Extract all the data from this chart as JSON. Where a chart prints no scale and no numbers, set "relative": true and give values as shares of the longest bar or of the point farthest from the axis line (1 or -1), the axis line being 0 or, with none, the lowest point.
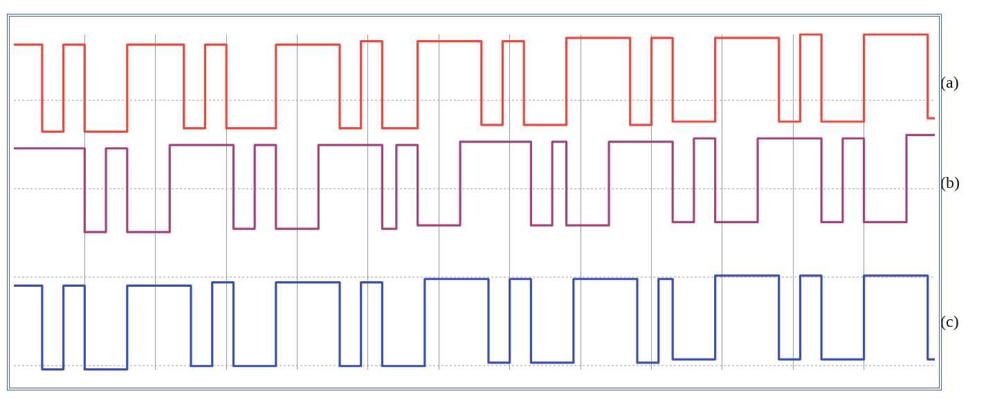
{
  "chart_data": {
    "type": "step",
    "relative": true,
    "grid": true,
    "legend": false,
    "marker": "none",
    "line_style": "solid",
    "categories": [
      null,
      null,
      null,
      null,
      null,
      null,
      null,
      null,
      null,
      null,
      null,
      null,
      null,
      null,
      null,
      null,
      null,
      null,
      null,
      null,
      null,
      null,
      null,
      null,
      null,
      null,
      null,
      null,
      null,
      null,
      null,
      null,
      null,
      null,
      null,
      null,
      null,
      null,
      null,
      null,
      null,
      null,
      null,
      null,
      null,
      null,
      null,
      null,
      null,
      null,
      null,
      null,
      null,
      null,
      null,
      null,
      null,
      null,
      null,
      null,
      null,
      null,
      null,
      null,
      null,
      null,
      null,
      null,
      null,
      null,
      null,
      null,
      null,
      null,
      null,
      null,
      null,
      null,
      null,
      null,
      null,
      null,
      null,
      null,
      null,
      null,
      null,
      null,
      null,
      null,
      null,
      null,
      null,
      null,
      null,
      null,
      null,
      null,
      null,
      null,
      null,
      null,
      null,
      null,
      null,
      null,
      null,
      null,
      null,
      null,
      null,
      null,
      null,
      null,
      null,
      null,
      null,
      null,
      null,
      null,
      null,
      null,
      null,
      null,
      null,
      null,
      null,
      null,
      null,
      null,
      null
    ],
    "series": [
      {
        "name": "(a)",
        "color": "#f0483c",
        "values": [
          0.97,
          0.97,
          0.97,
          0.97,
          0.71,
          0.71,
          0.71,
          0.97,
          0.97,
          0.97,
          0.71,
          0.71,
          0.71,
          0.71,
          0.71,
          0.71,
          0.97,
          0.97,
          0.97,
          0.97,
          0.97,
          0.97,
          0.97,
          0.97,
          0.72,
          0.72,
          0.72,
          0.97,
          0.97,
          0.97,
          0.72,
          0.72,
          0.72,
          0.72,
          0.72,
          0.72,
          0.72,
          0.97,
          0.97,
          0.97,
          0.97,
          0.97,
          0.97,
          0.97,
          0.97,
          0.97,
          0.72,
          0.72,
          0.72,
          0.98,
          0.98,
          0.98,
          0.72,
          0.72,
          0.72,
          0.72,
          0.72,
          0.98,
          0.98,
          0.98,
          0.98,
          0.98,
          0.98,
          0.98,
          0.98,
          0.98,
          0.73,
          0.73,
          0.73,
          0.98,
          0.98,
          0.98,
          0.73,
          0.73,
          0.73,
          0.73,
          0.73,
          0.73,
          0.99,
          0.99,
          0.99,
          0.99,
          0.99,
          0.99,
          0.99,
          0.99,
          0.99,
          0.73,
          0.73,
          0.73,
          0.99,
          0.99,
          0.99,
          0.74,
          0.74,
          0.74,
          0.74,
          0.74,
          0.74,
          0.99,
          0.99,
          0.99,
          0.99,
          0.99,
          0.99,
          0.99,
          0.99,
          0.99,
          0.74,
          0.74,
          0.74,
          1.0,
          1.0,
          1.0,
          0.74,
          0.74,
          0.74,
          0.74,
          0.74,
          0.74,
          1.0,
          1.0,
          1.0,
          1.0,
          1.0,
          1.0,
          1.0,
          1.0,
          1.0,
          0.75,
          0.75
        ]
      },
      {
        "name": "(b)",
        "color": "#a8427f",
        "values": [
          0.66,
          0.66,
          0.66,
          0.66,
          0.66,
          0.66,
          0.66,
          0.66,
          0.66,
          0.66,
          0.41,
          0.41,
          0.41,
          0.66,
          0.66,
          0.66,
          0.41,
          0.41,
          0.41,
          0.41,
          0.41,
          0.41,
          0.67,
          0.67,
          0.67,
          0.67,
          0.67,
          0.67,
          0.67,
          0.67,
          0.67,
          0.42,
          0.42,
          0.42,
          0.67,
          0.67,
          0.67,
          0.42,
          0.42,
          0.42,
          0.42,
          0.42,
          0.42,
          0.67,
          0.67,
          0.67,
          0.67,
          0.67,
          0.67,
          0.67,
          0.67,
          0.67,
          0.42,
          0.42,
          0.67,
          0.67,
          0.67,
          0.43,
          0.43,
          0.43,
          0.43,
          0.43,
          0.43,
          0.68,
          0.68,
          0.68,
          0.68,
          0.68,
          0.68,
          0.68,
          0.68,
          0.68,
          0.68,
          0.43,
          0.43,
          0.43,
          0.68,
          0.68,
          0.43,
          0.43,
          0.43,
          0.43,
          0.43,
          0.43,
          0.68,
          0.68,
          0.68,
          0.68,
          0.68,
          0.68,
          0.68,
          0.68,
          0.68,
          0.44,
          0.44,
          0.44,
          0.69,
          0.69,
          0.69,
          0.44,
          0.44,
          0.44,
          0.44,
          0.44,
          0.44,
          0.69,
          0.69,
          0.69,
          0.69,
          0.69,
          0.69,
          0.69,
          0.69,
          0.69,
          0.44,
          0.44,
          0.44,
          0.69,
          0.69,
          0.69,
          0.44,
          0.44,
          0.44,
          0.44,
          0.44,
          0.44,
          0.7,
          0.7,
          0.7,
          0.7,
          0.7
        ]
      },
      {
        "name": "(c)",
        "color": "#3a4fb8",
        "values": [
          0.25,
          0.25,
          0.25,
          0.25,
          0.0,
          0.0,
          0.0,
          0.25,
          0.25,
          0.25,
          0.0,
          0.0,
          0.0,
          0.0,
          0.0,
          0.0,
          0.25,
          0.25,
          0.25,
          0.25,
          0.25,
          0.25,
          0.25,
          0.25,
          0.25,
          0.01,
          0.01,
          0.01,
          0.26,
          0.26,
          0.26,
          0.01,
          0.01,
          0.01,
          0.01,
          0.01,
          0.01,
          0.26,
          0.26,
          0.26,
          0.26,
          0.26,
          0.26,
          0.26,
          0.26,
          0.26,
          0.01,
          0.01,
          0.01,
          0.26,
          0.26,
          0.26,
          0.01,
          0.01,
          0.01,
          0.01,
          0.01,
          0.01,
          0.27,
          0.27,
          0.27,
          0.27,
          0.27,
          0.27,
          0.27,
          0.27,
          0.27,
          0.02,
          0.02,
          0.02,
          0.27,
          0.27,
          0.27,
          0.02,
          0.02,
          0.02,
          0.02,
          0.02,
          0.02,
          0.27,
          0.27,
          0.27,
          0.27,
          0.27,
          0.27,
          0.27,
          0.27,
          0.27,
          0.02,
          0.02,
          0.02,
          0.27,
          0.27,
          0.03,
          0.03,
          0.03,
          0.03,
          0.03,
          0.03,
          0.28,
          0.28,
          0.28,
          0.28,
          0.28,
          0.28,
          0.28,
          0.28,
          0.28,
          0.03,
          0.03,
          0.03,
          0.28,
          0.28,
          0.28,
          0.03,
          0.03,
          0.03,
          0.03,
          0.03,
          0.03,
          0.28,
          0.28,
          0.28,
          0.28,
          0.28,
          0.28,
          0.28,
          0.28,
          0.28,
          0.03,
          0.03
        ]
      }
    ]
  }
}
